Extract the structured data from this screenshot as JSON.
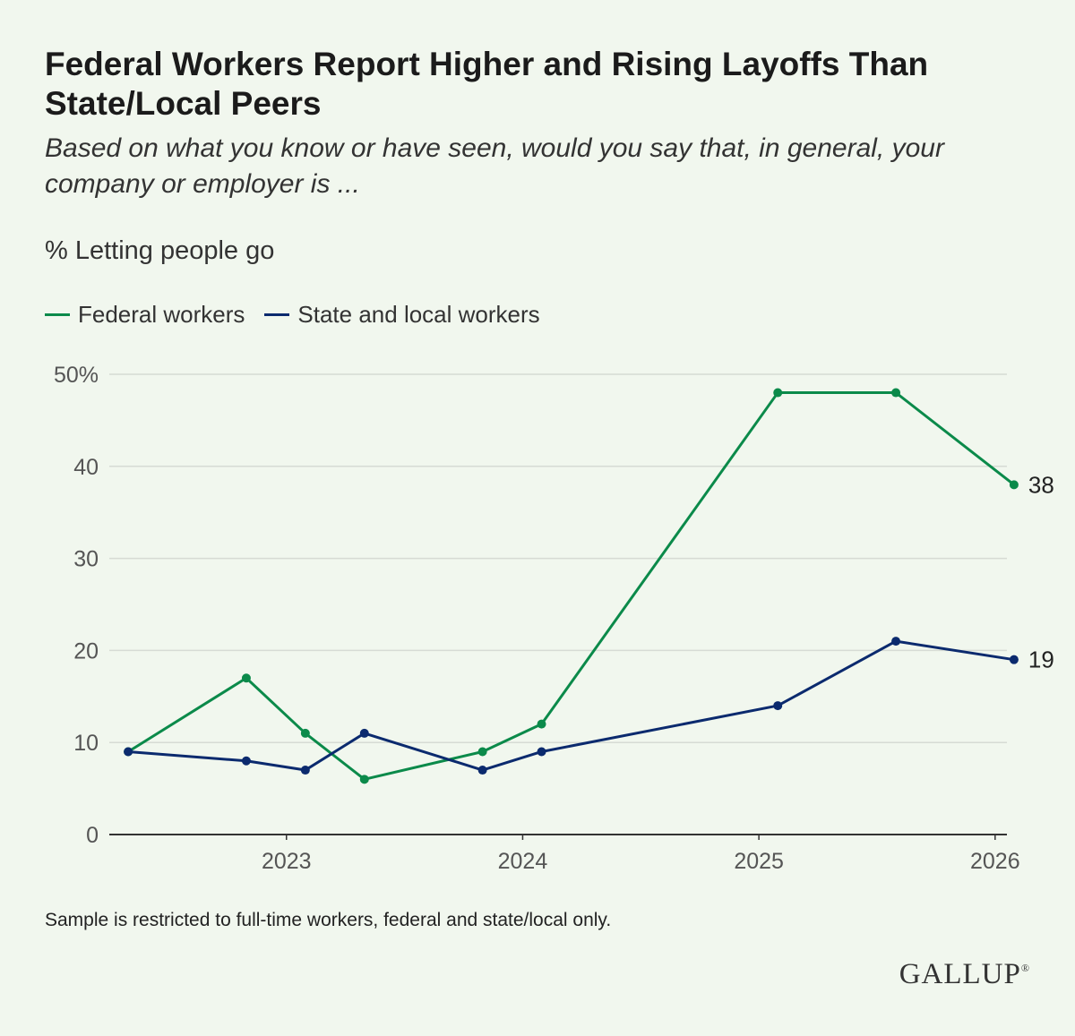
{
  "title": "Federal Workers Report Higher and Rising Layoffs Than State/Local Peers",
  "subtitle": "Based on what you know or have seen, would you say that, in general, your company or employer is ...",
  "metric_label": "% Letting people go",
  "footnote": "Sample is restricted to full-time workers, federal and state/local only.",
  "brand": {
    "name": "GALLUP",
    "mark": "®"
  },
  "colors": {
    "background": "#f1f7ee",
    "federal": "#0b8a4a",
    "state_local": "#0b2a6e",
    "grid": "#d6dbd4",
    "axis": "#333333",
    "tick_text": "#555555"
  },
  "chart_data": {
    "type": "line",
    "title": "Federal Workers Report Higher and Rising Layoffs Than State/Local Peers",
    "ylabel": "% Letting people go",
    "xlabel": "",
    "x_range": [
      2022.25,
      2026.05
    ],
    "ylim": [
      0,
      50
    ],
    "y_ticks": [
      0,
      10,
      20,
      30,
      40,
      50
    ],
    "y_tick_labels": [
      "0",
      "10",
      "20",
      "30",
      "40",
      "50%"
    ],
    "x_ticks": [
      2023,
      2024,
      2025,
      2026
    ],
    "x_tick_labels": [
      "2023",
      "2024",
      "2025",
      "2026"
    ],
    "grid": true,
    "legend_position": "top-left",
    "series": [
      {
        "name": "Federal workers",
        "color": "#0b8a4a",
        "x": [
          2022.33,
          2022.83,
          2023.08,
          2023.33,
          2023.83,
          2024.08,
          2025.08,
          2025.58,
          2026.08
        ],
        "values": [
          9,
          17,
          11,
          6,
          9,
          12,
          48,
          48,
          38
        ],
        "end_label": "38"
      },
      {
        "name": "State and local workers",
        "color": "#0b2a6e",
        "x": [
          2022.33,
          2022.83,
          2023.08,
          2023.33,
          2023.83,
          2024.08,
          2025.08,
          2025.58,
          2026.08
        ],
        "values": [
          9,
          8,
          7,
          11,
          7,
          9,
          14,
          21,
          19
        ],
        "end_label": "19"
      }
    ]
  }
}
